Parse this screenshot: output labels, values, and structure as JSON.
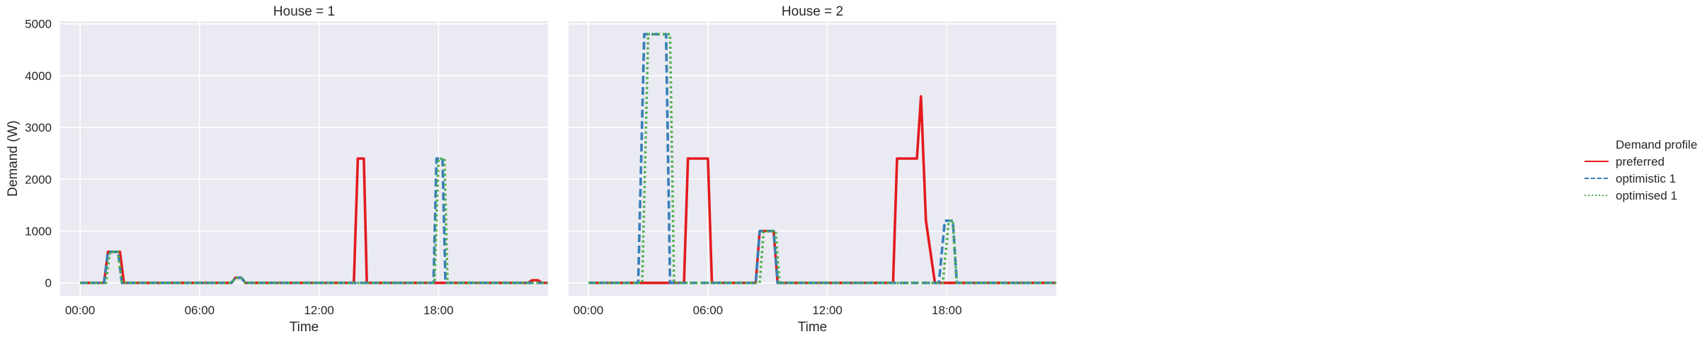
{
  "chart_data": {
    "type": "line",
    "xlabel": "Time",
    "ylabel": "Demand (W)",
    "x_unit": "hour of day",
    "xlim": [
      -1,
      23.5
    ],
    "ylim": [
      -250,
      5050
    ],
    "x_ticks": [
      0,
      6,
      12,
      18
    ],
    "x_tick_labels": [
      "00:00",
      "06:00",
      "12:00",
      "18:00"
    ],
    "y_ticks": [
      0,
      1000,
      2000,
      3000,
      4000,
      5000
    ],
    "y_tick_labels": [
      "0",
      "1000",
      "2000",
      "3000",
      "4000",
      "5000"
    ],
    "grid": true,
    "legend": {
      "title": "Demand profile",
      "placement": "right",
      "entries": [
        {
          "name": "preferred",
          "color": "#e41a1c",
          "dash": "solid"
        },
        {
          "name": "optimistic 1",
          "color": "#377eb8",
          "dash": "dashed"
        },
        {
          "name": "optimised 1",
          "color": "#4daf4a",
          "dash": "dotted"
        }
      ]
    },
    "panels": [
      {
        "title": "House = 1",
        "series": [
          {
            "name": "preferred",
            "color": "#e41a1c",
            "dash": "solid",
            "x": [
              0,
              1.2,
              1.4,
              2.0,
              2.2,
              7.6,
              7.8,
              8.1,
              8.3,
              13.75,
              13.95,
              14.25,
              14.4,
              22.5,
              22.7,
              23.0,
              23.2,
              23.5
            ],
            "y": [
              0,
              0,
              600,
              600,
              0,
              0,
              100,
              100,
              0,
              0,
              2400,
              2400,
              0,
              0,
              50,
              50,
              0,
              0
            ]
          },
          {
            "name": "optimistic 1",
            "color": "#377eb8",
            "dash": "dashed",
            "x": [
              0,
              1.2,
              1.4,
              1.9,
              2.1,
              7.6,
              7.8,
              8.1,
              8.3,
              17.75,
              17.9,
              18.2,
              18.35,
              23.5
            ],
            "y": [
              0,
              0,
              600,
              600,
              0,
              0,
              100,
              100,
              0,
              0,
              2400,
              2400,
              0,
              0
            ]
          },
          {
            "name": "optimised 1",
            "color": "#4daf4a",
            "dash": "dotted",
            "x": [
              0,
              1.3,
              1.5,
              1.9,
              2.1,
              7.6,
              7.8,
              8.1,
              8.3,
              17.8,
              18.0,
              18.3,
              18.45,
              23.5
            ],
            "y": [
              0,
              0,
              600,
              600,
              0,
              0,
              100,
              100,
              0,
              0,
              2400,
              2400,
              0,
              0
            ]
          }
        ]
      },
      {
        "title": "House = 2",
        "series": [
          {
            "name": "preferred",
            "color": "#e41a1c",
            "dash": "solid",
            "x": [
              0,
              4.8,
              5.0,
              6.0,
              6.2,
              8.4,
              8.6,
              9.3,
              9.5,
              15.3,
              15.5,
              16.5,
              16.7,
              16.95,
              17.4,
              23.5
            ],
            "y": [
              0,
              0,
              2400,
              2400,
              0,
              0,
              1000,
              1000,
              0,
              0,
              2400,
              2400,
              3600,
              1200,
              0,
              0
            ]
          },
          {
            "name": "optimistic 1",
            "color": "#377eb8",
            "dash": "dashed",
            "x": [
              0,
              2.5,
              2.8,
              3.9,
              4.1,
              8.4,
              8.6,
              9.3,
              9.5,
              17.6,
              17.9,
              18.3,
              18.5,
              23.5
            ],
            "y": [
              0,
              0,
              4800,
              4800,
              0,
              0,
              1000,
              1000,
              0,
              0,
              1200,
              1200,
              0,
              0
            ]
          },
          {
            "name": "optimised 1",
            "color": "#4daf4a",
            "dash": "dotted",
            "x": [
              0,
              2.7,
              3.0,
              4.1,
              4.3,
              8.6,
              8.8,
              9.4,
              9.6,
              17.8,
              18.1,
              18.3,
              18.5,
              23.5
            ],
            "y": [
              0,
              0,
              4800,
              4800,
              0,
              0,
              1000,
              1000,
              0,
              0,
              1200,
              1200,
              0,
              0
            ]
          }
        ]
      }
    ]
  }
}
